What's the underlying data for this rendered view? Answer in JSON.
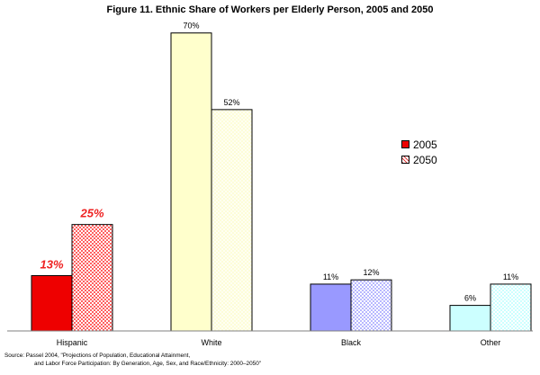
{
  "chart_data": {
    "type": "bar",
    "title": "Figure 11. Ethnic Share of Workers per Elderly Person, 2005 and 2050",
    "categories": [
      "Hispanic",
      "White",
      "Black",
      "Other"
    ],
    "series": [
      {
        "name": "2005",
        "values": [
          13,
          70,
          11,
          6
        ],
        "labels": [
          "13%",
          "70%",
          "11%",
          "6%"
        ]
      },
      {
        "name": "2050",
        "values": [
          25,
          52,
          12,
          11
        ],
        "labels": [
          "25%",
          "52%",
          "12%",
          "11%"
        ]
      }
    ],
    "ylim": [
      0,
      75
    ],
    "grid": false,
    "legend_position": "right",
    "colors": {
      "2005": [
        "#ee0000",
        "#ffffcc",
        "#9999ff",
        "#ccffff"
      ],
      "2050_fill": [
        "#ffb3b3",
        "#ffffe6",
        "#ddddff",
        "#e6ffff"
      ],
      "axis": "#808080",
      "highlight_label": "#ee2222"
    }
  },
  "source": {
    "line1": "Source:  Passel 2004, \"Projections of Population, Educational Attainment,",
    "line2": "and Labor Force Participation: By Generation, Age, Sex, and Race/Ethnicity: 2000–2050\""
  }
}
